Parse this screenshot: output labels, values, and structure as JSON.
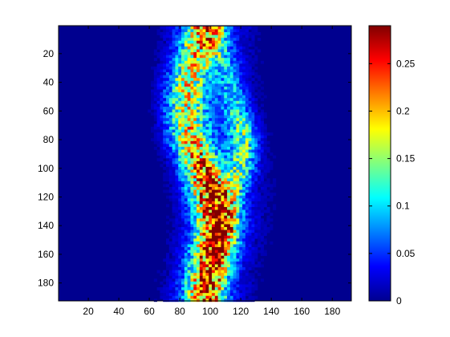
{
  "chart_data": {
    "type": "heatmap",
    "title": "",
    "xlabel": "",
    "ylabel": "",
    "x_range": [
      1,
      192
    ],
    "y_range": [
      1,
      192
    ],
    "y_direction": "top-to-bottom",
    "x_ticks": [
      20,
      40,
      60,
      80,
      100,
      120,
      140,
      160,
      180
    ],
    "y_ticks": [
      20,
      40,
      60,
      80,
      100,
      120,
      140,
      160,
      180
    ],
    "x_tick_labels": [
      "20",
      "40",
      "60",
      "80",
      "100",
      "120",
      "140",
      "160",
      "180"
    ],
    "y_tick_labels": [
      "20",
      "40",
      "60",
      "80",
      "100",
      "120",
      "140",
      "160",
      "180"
    ],
    "colormap": "jet",
    "colorbar": {
      "range": [
        0,
        0.29
      ],
      "ticks": [
        0,
        0.05,
        0.1,
        0.15,
        0.2,
        0.25
      ],
      "tick_labels": [
        "0",
        "0.05",
        "0.1",
        "0.15",
        "0.2",
        "0.25"
      ]
    },
    "grid": false,
    "legend": "none",
    "structure": {
      "description_of_values": "Two intertwining noisy bands of intensity on a near-zero background; column positions are x data units at given row (y)",
      "main_band_center_x": [
        [
          1,
          95
        ],
        [
          20,
          90
        ],
        [
          40,
          84
        ],
        [
          60,
          83
        ],
        [
          80,
          86
        ],
        [
          100,
          94
        ],
        [
          120,
          100
        ],
        [
          140,
          104
        ],
        [
          160,
          100
        ],
        [
          180,
          96
        ],
        [
          192,
          95
        ]
      ],
      "main_band_peak": [
        [
          1,
          0.17
        ],
        [
          20,
          0.15
        ],
        [
          60,
          0.14
        ],
        [
          100,
          0.2
        ],
        [
          130,
          0.25
        ],
        [
          150,
          0.23
        ],
        [
          180,
          0.19
        ]
      ],
      "secondary_band_center_x": [
        [
          1,
          100
        ],
        [
          20,
          107
        ],
        [
          40,
          112
        ],
        [
          60,
          117
        ],
        [
          80,
          121
        ],
        [
          100,
          119
        ],
        [
          120,
          112
        ],
        [
          140,
          107
        ],
        [
          160,
          103
        ],
        [
          192,
          98
        ]
      ],
      "secondary_band_peak": [
        [
          1,
          0.06
        ],
        [
          40,
          0.06
        ],
        [
          80,
          0.12
        ],
        [
          100,
          0.1
        ],
        [
          140,
          0.05
        ],
        [
          192,
          0.04
        ]
      ],
      "background_extent_x": [
        58,
        140
      ]
    }
  }
}
